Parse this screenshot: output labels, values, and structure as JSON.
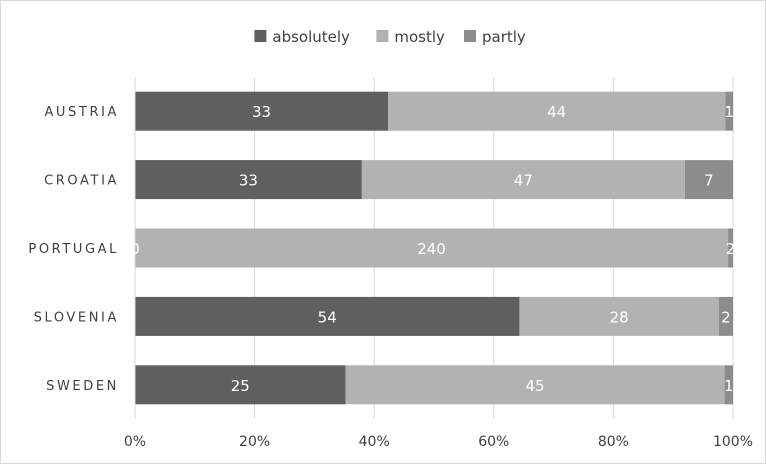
{
  "chart_data": {
    "type": "bar",
    "orientation": "horizontal",
    "stacked": "percent",
    "categories": [
      "AUSTRIA",
      "CROATIA",
      "PORTUGAL",
      "SLOVENIA",
      "SWEDEN"
    ],
    "series": [
      {
        "name": "absolutely",
        "color": "#5f5f5f",
        "values": [
          33,
          33,
          0,
          54,
          25
        ]
      },
      {
        "name": "mostly",
        "color": "#b2b2b2",
        "values": [
          44,
          47,
          240,
          28,
          45
        ]
      },
      {
        "name": "partly",
        "color": "#8c8c8c",
        "values": [
          1,
          7,
          2,
          2,
          1
        ]
      }
    ],
    "x_ticks": [
      "0%",
      "20%",
      "40%",
      "60%",
      "80%",
      "100%"
    ],
    "xlim": [
      0,
      100
    ],
    "legend_position": "top",
    "grid": true,
    "title": "",
    "xlabel": "",
    "ylabel": ""
  }
}
